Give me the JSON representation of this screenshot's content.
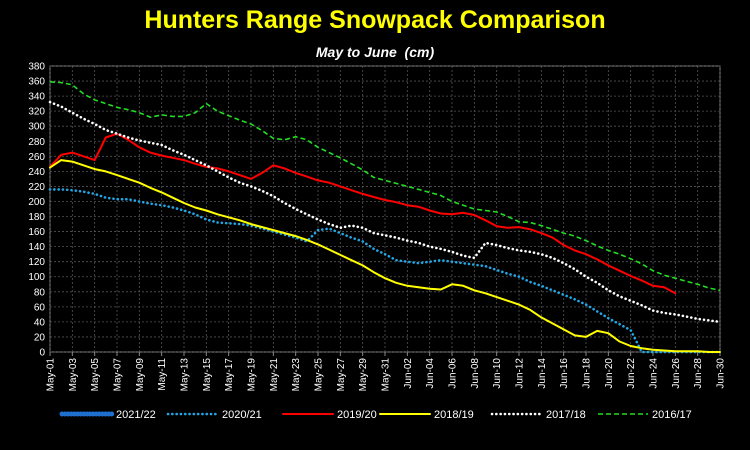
{
  "chart_data": {
    "type": "line",
    "title": "Hunters Range Snowpack Comparison",
    "subtitle": "May to June  (cm)",
    "xlabel": "",
    "ylabel": "",
    "ylim": [
      0,
      380
    ],
    "yticks": [
      0,
      20,
      40,
      60,
      80,
      100,
      120,
      140,
      160,
      180,
      200,
      220,
      240,
      260,
      280,
      300,
      320,
      340,
      360,
      380
    ],
    "x_tick_labels": [
      "May-01",
      "May-03",
      "May-05",
      "May-07",
      "May-09",
      "May-11",
      "May-13",
      "May-15",
      "May-17",
      "May-19",
      "May-21",
      "May-23",
      "May-25",
      "May-27",
      "May-29",
      "May-31",
      "Jun-02",
      "Jun-04",
      "Jun-06",
      "Jun-08",
      "Jun-10",
      "Jun-12",
      "Jun-14",
      "Jun-16",
      "Jun-18",
      "Jun-20",
      "Jun-22",
      "Jun-24",
      "Jun-26",
      "Jun-28",
      "Jun-30"
    ],
    "grid": true,
    "legend_position": "bottom",
    "background": "#000000",
    "series": [
      {
        "name": "2021/22",
        "color": "#1f6fd0",
        "style": "dense-dotted",
        "values": []
      },
      {
        "name": "2020/21",
        "color": "#22a7e6",
        "style": "dotted",
        "values": [
          216,
          216,
          215,
          213,
          210,
          205,
          203,
          203,
          200,
          197,
          195,
          192,
          188,
          183,
          176,
          172,
          171,
          170,
          168,
          164,
          160,
          156,
          152,
          147,
          162,
          164,
          158,
          152,
          147,
          137,
          130,
          122,
          120,
          118,
          120,
          122,
          120,
          118,
          116,
          114,
          109,
          104,
          100,
          93,
          88,
          82,
          76,
          70,
          63,
          54,
          45,
          37,
          29,
          0,
          0,
          0,
          0,
          0,
          0,
          0,
          0
        ]
      },
      {
        "name": "2019/20",
        "color": "#ff0000",
        "style": "solid",
        "values": [
          246,
          262,
          265,
          260,
          255,
          285,
          290,
          282,
          272,
          265,
          261,
          258,
          255,
          250,
          246,
          244,
          240,
          235,
          230,
          238,
          248,
          244,
          238,
          233,
          228,
          225,
          220,
          215,
          210,
          206,
          202,
          199,
          195,
          193,
          188,
          184,
          183,
          185,
          182,
          175,
          167,
          165,
          166,
          163,
          158,
          152,
          142,
          135,
          130,
          123,
          115,
          108,
          101,
          95,
          88,
          86,
          78
        ]
      },
      {
        "name": "2018/19",
        "color": "#ffff00",
        "style": "solid",
        "values": [
          245,
          255,
          253,
          248,
          243,
          240,
          235,
          230,
          225,
          218,
          212,
          205,
          198,
          192,
          188,
          183,
          179,
          175,
          170,
          166,
          162,
          158,
          154,
          149,
          143,
          136,
          129,
          122,
          115,
          106,
          98,
          92,
          88,
          86,
          84,
          83,
          90,
          88,
          82,
          78,
          73,
          68,
          63,
          56,
          46,
          38,
          30,
          22,
          20,
          28,
          25,
          14,
          8,
          5,
          3,
          2,
          1,
          1,
          1,
          0,
          0
        ]
      },
      {
        "name": "2017/18",
        "color": "#ffffff",
        "style": "dotted",
        "values": [
          332,
          326,
          318,
          310,
          303,
          295,
          290,
          285,
          281,
          278,
          275,
          268,
          262,
          255,
          248,
          240,
          232,
          225,
          220,
          214,
          207,
          198,
          190,
          183,
          176,
          170,
          165,
          168,
          165,
          158,
          155,
          152,
          148,
          145,
          140,
          137,
          133,
          128,
          125,
          145,
          142,
          138,
          135,
          133,
          130,
          125,
          118,
          110,
          100,
          92,
          82,
          74,
          68,
          62,
          55,
          52,
          50,
          47,
          44,
          42,
          40
        ]
      },
      {
        "name": "2016/17",
        "color": "#22dd22",
        "style": "dashed",
        "values": [
          359,
          358,
          355,
          343,
          335,
          330,
          325,
          322,
          318,
          312,
          315,
          313,
          313,
          318,
          330,
          320,
          314,
          308,
          303,
          294,
          284,
          282,
          286,
          282,
          272,
          265,
          258,
          250,
          242,
          232,
          228,
          224,
          220,
          216,
          212,
          208,
          200,
          195,
          190,
          188,
          186,
          180,
          173,
          172,
          168,
          163,
          158,
          154,
          148,
          141,
          135,
          130,
          124,
          117,
          108,
          102,
          98,
          94,
          90,
          85,
          82
        ]
      }
    ]
  }
}
